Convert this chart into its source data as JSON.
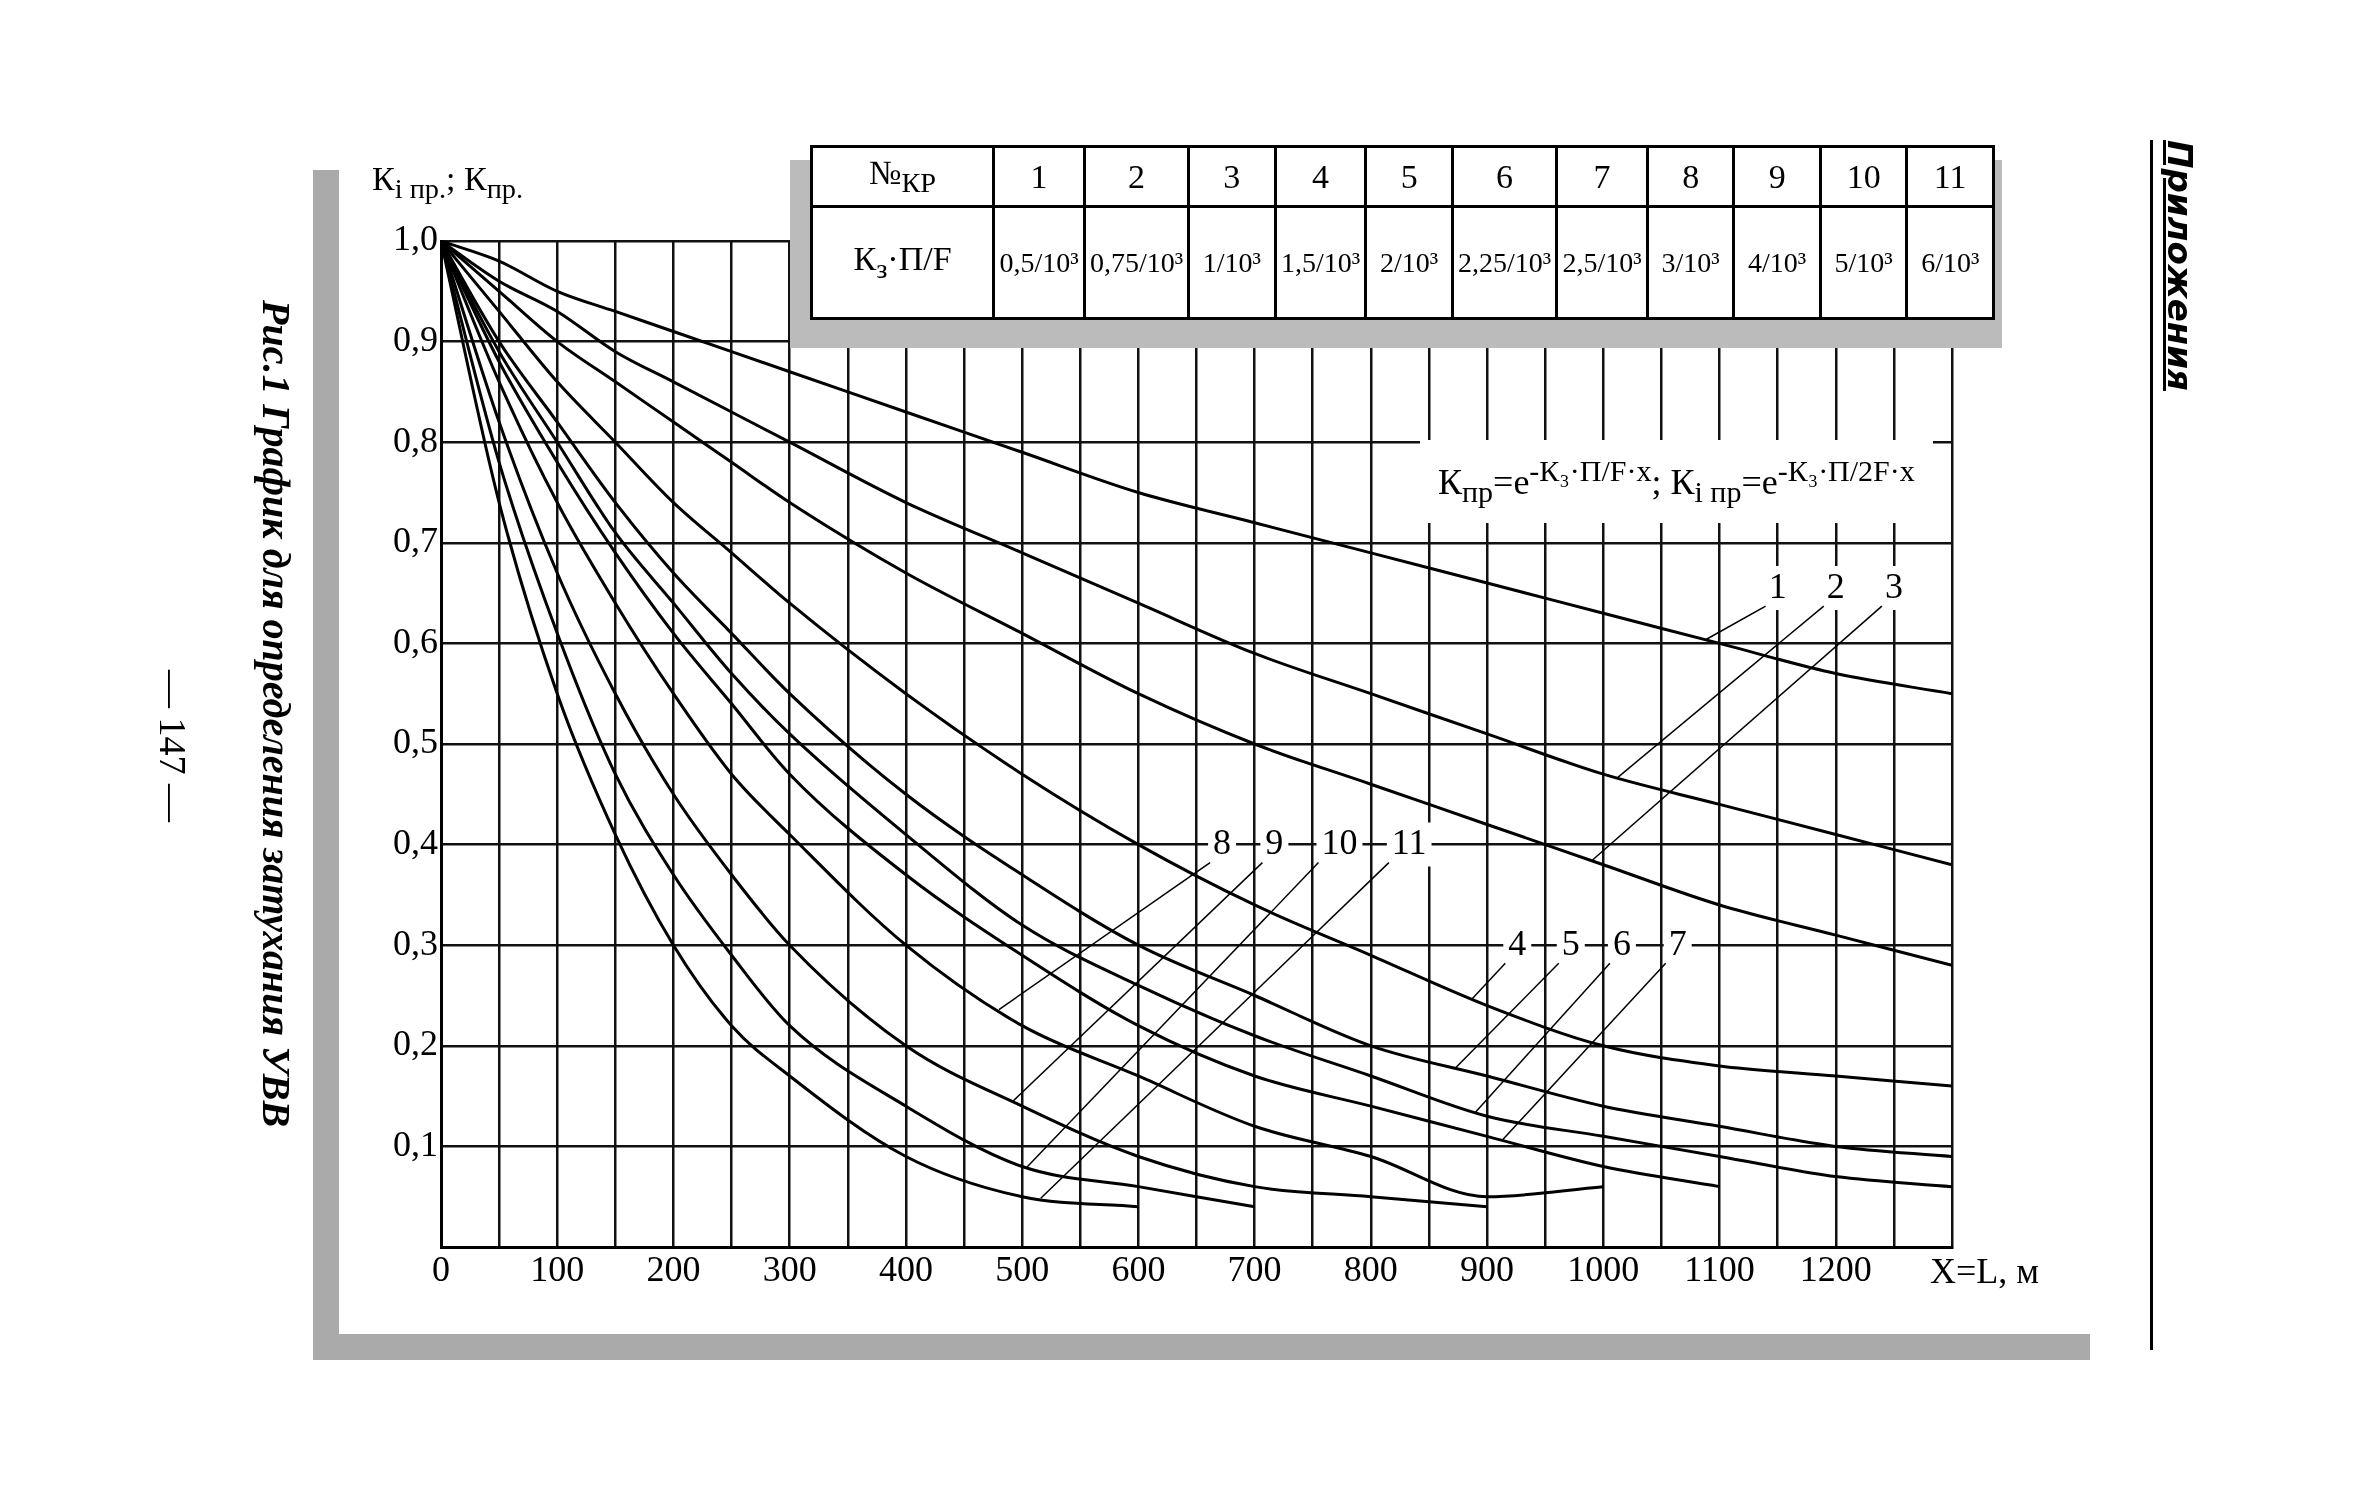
{
  "chart_data": {
    "type": "line",
    "title": "Рис.1 График для определения затухания УВВ",
    "ylabel": "К$_{i пр.}$; К$_{пр.}$",
    "xlabel": "X=L, м",
    "annotations": [
      "К$_{пр}$=e$^{-К₃·П/F·x}$;  К$_{i пр}$=e$^{-К₃·П/2F·x}$",
      "Приложения",
      "— 147 —",
      "№$_{КР}$",
      "К$_{з}$·П/F",
      "0,5/10³",
      "0,75/10³",
      "1/10³",
      "1,5/10³",
      "2/10³",
      "2,25/10³",
      "2,5/10³",
      "3/10³",
      "4/10³",
      "5/10³",
      "6/10³"
    ],
    "x": [
      0,
      50,
      100,
      150,
      200,
      250,
      300,
      400,
      500,
      600,
      700,
      800,
      900,
      1000,
      1100,
      1200,
      1300
    ],
    "xlim": [
      0,
      1300
    ],
    "xticks": [
      0,
      {
        "value": 50,
        "label": null
      },
      100,
      {
        "value": 150,
        "label": null
      },
      200,
      {
        "value": 250,
        "label": null
      },
      300,
      {
        "value": 350,
        "label": null
      },
      400,
      {
        "value": 450,
        "label": null
      },
      500,
      {
        "value": 550,
        "label": null
      },
      600,
      {
        "value": 650,
        "label": null
      },
      700,
      {
        "value": 750,
        "label": null
      },
      800,
      {
        "value": 850,
        "label": null
      },
      900,
      {
        "value": 950,
        "label": null
      },
      1000,
      {
        "value": 1050,
        "label": null
      },
      1100,
      {
        "value": 1150,
        "label": null
      },
      1200,
      {
        "value": 1250,
        "label": null
      },
      {
        "value": 1300,
        "label": null
      }
    ],
    "ylim": [
      0,
      1
    ],
    "yticks": [
      {
        "value": 0,
        "label": null
      },
      {
        "value": 0.1,
        "label": "0,1"
      },
      {
        "value": 0.2,
        "label": "0,2"
      },
      {
        "value": 0.3,
        "label": "0,3"
      },
      {
        "value": 0.4,
        "label": "0,4"
      },
      {
        "value": 0.5,
        "label": "0,5"
      },
      {
        "value": 0.6,
        "label": "0,6"
      },
      {
        "value": 0.7,
        "label": "0,7"
      },
      {
        "value": 0.8,
        "label": "0,8"
      },
      {
        "value": 0.9,
        "label": "0,9"
      },
      {
        "value": 1,
        "label": "1,0"
      }
    ],
    "grid": true,
    "legend": "top right",
    "series": [
      {
        "name": "1",
        "color": "#000000",
        "values": [
          1,
          0.98,
          0.95,
          0.93,
          0.91,
          0.89,
          0.87,
          0.83,
          0.79,
          0.75,
          0.72,
          0.69,
          0.66,
          0.63,
          0.6,
          0.57,
          0.55
        ]
      },
      {
        "name": "2",
        "color": "#000000",
        "values": [
          1,
          0.96,
          0.93,
          0.89,
          0.86,
          0.83,
          0.8,
          0.74,
          0.69,
          0.64,
          0.59,
          0.55,
          0.51,
          0.47,
          0.44,
          0.41,
          0.38
        ]
      },
      {
        "name": "3",
        "color": "#000000",
        "values": [
          1,
          0.95,
          0.9,
          0.86,
          0.82,
          0.78,
          0.74,
          0.67,
          0.61,
          0.55,
          0.5,
          0.46,
          0.42,
          0.38,
          0.34,
          0.31,
          0.28
        ]
      },
      {
        "name": "4",
        "color": "#000000",
        "values": [
          1,
          0.93,
          0.86,
          0.8,
          0.74,
          0.69,
          0.64,
          0.55,
          0.47,
          0.4,
          0.34,
          0.29,
          0.24,
          0.2,
          0.18,
          0.17,
          0.16
        ]
      },
      {
        "name": "5",
        "color": "#000000",
        "values": [
          1,
          0.9,
          0.82,
          0.74,
          0.67,
          0.61,
          0.55,
          0.45,
          0.37,
          0.3,
          0.25,
          0.2,
          0.17,
          0.14,
          0.12,
          0.1,
          0.09
        ]
      },
      {
        "name": "6",
        "color": "#000000",
        "values": [
          1,
          0.89,
          0.8,
          0.71,
          0.64,
          0.57,
          0.51,
          0.41,
          0.32,
          0.26,
          0.21,
          0.17,
          0.13,
          0.11,
          0.09,
          0.07,
          0.06
        ]
      },
      {
        "name": "7",
        "color": "#000000",
        "values": [
          1,
          0.88,
          0.78,
          0.69,
          0.61,
          0.54,
          0.47,
          0.37,
          0.29,
          0.22,
          0.17,
          0.14,
          0.11,
          0.08,
          0.06,
          null,
          null
        ]
      },
      {
        "name": "8",
        "color": "#000000",
        "values": [
          1,
          0.86,
          0.74,
          0.64,
          0.55,
          0.47,
          0.41,
          0.3,
          0.22,
          0.17,
          0.12,
          0.09,
          0.05,
          0.06,
          null,
          null,
          null
        ]
      },
      {
        "name": "9",
        "color": "#000000",
        "values": [
          1,
          0.82,
          0.67,
          0.55,
          0.45,
          0.37,
          0.3,
          0.2,
          0.14,
          0.09,
          0.06,
          0.05,
          0.04,
          null,
          null,
          null,
          null
        ]
      },
      {
        "name": "10",
        "color": "#000000",
        "values": [
          1,
          0.78,
          0.61,
          0.47,
          0.37,
          0.29,
          0.22,
          0.14,
          0.08,
          0.06,
          0.04,
          null,
          null,
          null,
          null,
          null,
          null
        ]
      },
      {
        "name": "11",
        "color": "#000000",
        "values": [
          1,
          0.74,
          0.55,
          0.41,
          0.3,
          0.22,
          0.17,
          0.09,
          0.05,
          0.04,
          null,
          null,
          null,
          null,
          null,
          null,
          null
        ]
      }
    ]
  }
}
